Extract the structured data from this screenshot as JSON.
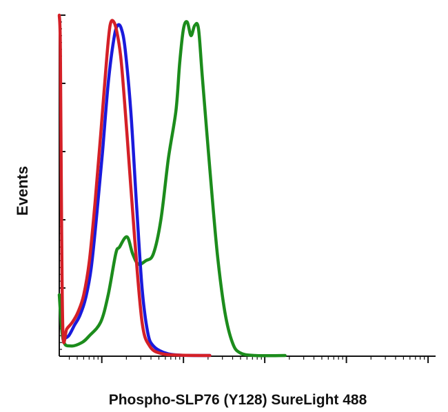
{
  "chart_data": {
    "type": "line",
    "title": "",
    "xlabel": "Phospho-SLP76 (Y128) SureLight 488",
    "ylabel": "Events",
    "xscale": "log",
    "xlim": [
      0,
      1
    ],
    "ylim": [
      0,
      1
    ],
    "grid": false,
    "legend": "none",
    "x_decade_ticks": [
      0.113,
      0.33,
      0.546,
      0.763,
      0.98
    ],
    "y_major_ticks": [
      0.2,
      0.4,
      0.6,
      0.8,
      1.0
    ],
    "series": [
      {
        "color": "#d42027",
        "values": [
          [
            0,
            1.0
          ],
          [
            0.003,
            0.9
          ],
          [
            0.006,
            0.4
          ],
          [
            0.01,
            0.06
          ],
          [
            0.02,
            0.08
          ],
          [
            0.035,
            0.1
          ],
          [
            0.05,
            0.13
          ],
          [
            0.065,
            0.18
          ],
          [
            0.08,
            0.28
          ],
          [
            0.095,
            0.45
          ],
          [
            0.11,
            0.65
          ],
          [
            0.125,
            0.86
          ],
          [
            0.135,
            0.97
          ],
          [
            0.145,
            0.98
          ],
          [
            0.155,
            0.94
          ],
          [
            0.165,
            0.86
          ],
          [
            0.18,
            0.65
          ],
          [
            0.2,
            0.35
          ],
          [
            0.22,
            0.1
          ],
          [
            0.24,
            0.03
          ],
          [
            0.27,
            0.008
          ],
          [
            0.32,
            0.003
          ],
          [
            0.4,
            0.0
          ]
        ]
      },
      {
        "color": "#1a1adc",
        "values": [
          [
            0.01,
            0.05
          ],
          [
            0.025,
            0.06
          ],
          [
            0.04,
            0.09
          ],
          [
            0.055,
            0.12
          ],
          [
            0.07,
            0.17
          ],
          [
            0.085,
            0.26
          ],
          [
            0.1,
            0.42
          ],
          [
            0.115,
            0.6
          ],
          [
            0.13,
            0.8
          ],
          [
            0.145,
            0.93
          ],
          [
            0.155,
            0.97
          ],
          [
            0.165,
            0.96
          ],
          [
            0.175,
            0.9
          ],
          [
            0.19,
            0.72
          ],
          [
            0.205,
            0.45
          ],
          [
            0.22,
            0.2
          ],
          [
            0.235,
            0.07
          ],
          [
            0.25,
            0.03
          ],
          [
            0.28,
            0.01
          ],
          [
            0.32,
            0.003
          ],
          [
            0.4,
            0.0
          ]
        ]
      },
      {
        "color": "#1c8c1c",
        "values": [
          [
            0.0,
            0.18
          ],
          [
            0.01,
            0.05
          ],
          [
            0.03,
            0.03
          ],
          [
            0.06,
            0.04
          ],
          [
            0.08,
            0.06
          ],
          [
            0.11,
            0.1
          ],
          [
            0.13,
            0.18
          ],
          [
            0.15,
            0.3
          ],
          [
            0.16,
            0.32
          ],
          [
            0.18,
            0.35
          ],
          [
            0.195,
            0.3
          ],
          [
            0.21,
            0.27
          ],
          [
            0.23,
            0.28
          ],
          [
            0.25,
            0.3
          ],
          [
            0.27,
            0.4
          ],
          [
            0.29,
            0.58
          ],
          [
            0.31,
            0.72
          ],
          [
            0.32,
            0.86
          ],
          [
            0.33,
            0.96
          ],
          [
            0.34,
            0.98
          ],
          [
            0.35,
            0.94
          ],
          [
            0.36,
            0.97
          ],
          [
            0.37,
            0.96
          ],
          [
            0.38,
            0.82
          ],
          [
            0.4,
            0.55
          ],
          [
            0.42,
            0.3
          ],
          [
            0.44,
            0.13
          ],
          [
            0.46,
            0.04
          ],
          [
            0.48,
            0.01
          ],
          [
            0.52,
            0.0
          ],
          [
            0.6,
            0.0
          ]
        ]
      }
    ]
  }
}
